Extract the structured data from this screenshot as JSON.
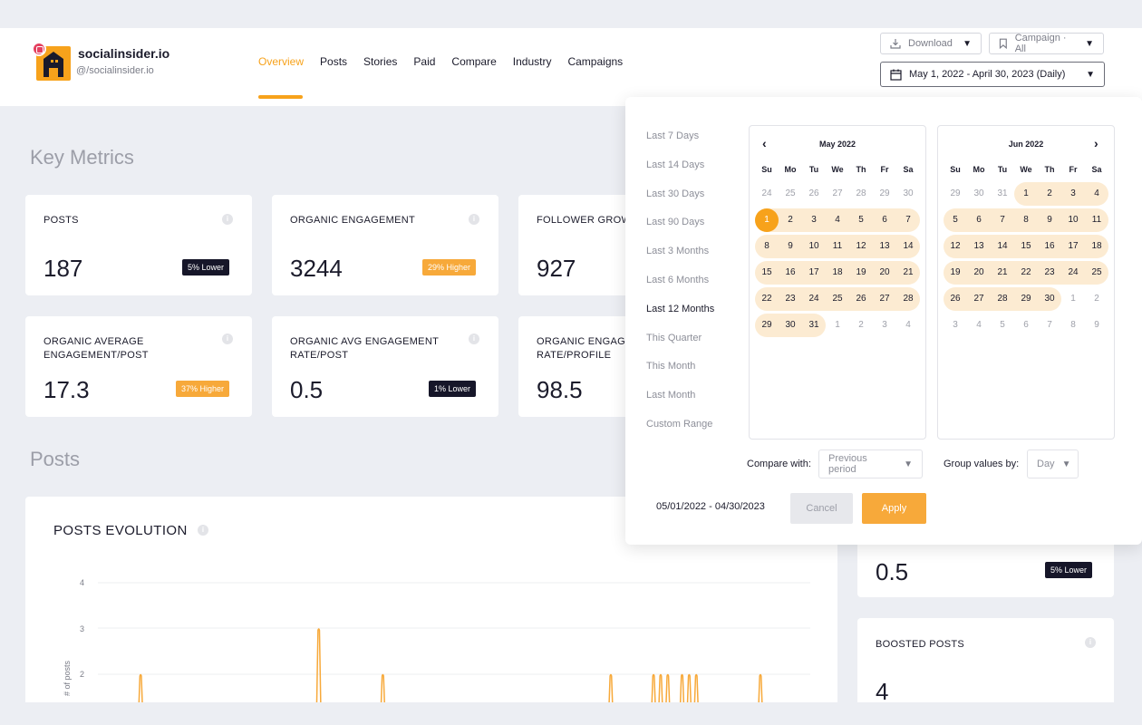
{
  "brand": {
    "name": "socialinsider.io",
    "handle": "@/socialinsider.io"
  },
  "nav": [
    "Overview",
    "Posts",
    "Stories",
    "Paid",
    "Compare",
    "Industry",
    "Campaigns"
  ],
  "toolbar": {
    "download_label": "Download",
    "campaign_label": "Campaign · All",
    "date_label": "May 1, 2022 - April 30, 2023 (Daily)"
  },
  "sections": {
    "key_metrics": "Key Metrics",
    "posts": "Posts"
  },
  "metrics": [
    {
      "title": "POSTS",
      "value": "187",
      "badge": "5% Lower",
      "badge_type": "lower"
    },
    {
      "title": "ORGANIC ENGAGEMENT",
      "value": "3244",
      "badge": "29% Higher",
      "badge_type": "higher"
    },
    {
      "title": "FOLLOWER GROWTH",
      "value": "927"
    },
    {
      "title": "ORGANIC AVERAGE ENGAGEMENT/POST",
      "value": "17.3",
      "badge": "37% Higher",
      "badge_type": "higher"
    },
    {
      "title": "ORGANIC AVG ENGAGEMENT RATE/POST",
      "value": "0.5",
      "badge": "1% Lower",
      "badge_type": "lower"
    },
    {
      "title": "ORGANIC ENGAGEMENT RATE/PROFILE",
      "value": "98.5"
    }
  ],
  "side_cards": [
    {
      "value": "0.5",
      "badge": "5% Lower"
    },
    {
      "title": "BOOSTED POSTS",
      "value": "4"
    }
  ],
  "posts_evolution": {
    "title": "POSTS EVOLUTION",
    "ylabel": "# of posts",
    "y_ticks": [
      "4",
      "3",
      "2"
    ]
  },
  "chart_data": {
    "type": "line",
    "title": "POSTS EVOLUTION",
    "ylabel": "# of posts",
    "ylim": [
      1,
      4
    ],
    "spikes": [
      {
        "pos": 0.06,
        "value": 2
      },
      {
        "pos": 0.31,
        "value": 3
      },
      {
        "pos": 0.4,
        "value": 2
      },
      {
        "pos": 0.72,
        "value": 2
      },
      {
        "pos": 0.78,
        "value": 2
      },
      {
        "pos": 0.79,
        "value": 2
      },
      {
        "pos": 0.8,
        "value": 2
      },
      {
        "pos": 0.82,
        "value": 2
      },
      {
        "pos": 0.83,
        "value": 2
      },
      {
        "pos": 0.84,
        "value": 2
      },
      {
        "pos": 0.93,
        "value": 2
      }
    ]
  },
  "date_picker": {
    "ranges": [
      "Last 7 Days",
      "Last 14 Days",
      "Last 30 Days",
      "Last 90 Days",
      "Last 3 Months",
      "Last 6 Months",
      "Last 12 Months",
      "This Quarter",
      "This Month",
      "Last Month",
      "Custom Range"
    ],
    "selected_range": "Last 12 Months",
    "weekdays": [
      "Su",
      "Mo",
      "Tu",
      "We",
      "Th",
      "Fr",
      "Sa"
    ],
    "left_month": {
      "title": "May 2022",
      "days": [
        "24",
        "25",
        "26",
        "27",
        "28",
        "29",
        "30",
        "1",
        "2",
        "3",
        "4",
        "5",
        "6",
        "7",
        "8",
        "9",
        "10",
        "11",
        "12",
        "13",
        "14",
        "15",
        "16",
        "17",
        "18",
        "19",
        "20",
        "21",
        "22",
        "23",
        "24",
        "25",
        "26",
        "27",
        "28",
        "29",
        "30",
        "31",
        "1",
        "2",
        "3",
        "4"
      ],
      "in_start": 7,
      "in_end": 37,
      "start_index": 7
    },
    "right_month": {
      "title": "Jun 2022",
      "days": [
        "29",
        "30",
        "31",
        "1",
        "2",
        "3",
        "4",
        "5",
        "6",
        "7",
        "8",
        "9",
        "10",
        "11",
        "12",
        "13",
        "14",
        "15",
        "16",
        "17",
        "18",
        "19",
        "20",
        "21",
        "22",
        "23",
        "24",
        "25",
        "26",
        "27",
        "28",
        "29",
        "30",
        "1",
        "2",
        "3",
        "4",
        "5",
        "6",
        "7",
        "8",
        "9"
      ],
      "in_start": 3,
      "in_end": 32
    },
    "compare_label": "Compare with:",
    "compare_value": "Previous period",
    "group_label": "Group values by:",
    "group_value": "Day",
    "range_text": "05/01/2022 - 04/30/2023",
    "cancel_label": "Cancel",
    "apply_label": "Apply"
  }
}
